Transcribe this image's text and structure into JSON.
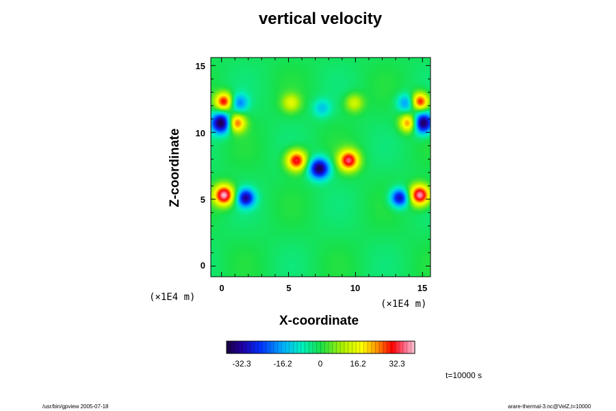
{
  "chart_data": {
    "type": "heatmap",
    "title": "vertical velocity",
    "xlabel": "X-coordinate",
    "ylabel": "Z-coordinate",
    "x_unit": "(×1E4 m)",
    "x_unit_secondary": "(×1E4 m)",
    "xlim": [
      -0.8,
      15.6
    ],
    "ylim": [
      -0.8,
      15.6
    ],
    "x_ticks": [
      "0",
      "5",
      "10",
      "15"
    ],
    "y_ticks": [
      "0",
      "5",
      "10",
      "15"
    ],
    "colorbar": {
      "range": [
        -48,
        48
      ],
      "tick_labels": [
        "-32.3",
        "-16.2",
        "0",
        "16.2",
        "32.3"
      ],
      "tick_values": [
        -32.3,
        -16.2,
        0,
        16.2,
        32.3
      ],
      "colormap": "rainbow (blue-cyan-green-yellow-red-white)"
    },
    "features": [
      {
        "x": 7.3,
        "z": 7.3,
        "value": -45
      },
      {
        "x": 1.8,
        "z": 5.1,
        "value": -38
      },
      {
        "x": 13.3,
        "z": 5.1,
        "value": -38
      },
      {
        "x": 0.0,
        "z": 10.7,
        "value": -48
      },
      {
        "x": 15.0,
        "z": 10.7,
        "value": -48
      },
      {
        "x": 1.3,
        "z": 12.2,
        "value": -22
      },
      {
        "x": 13.8,
        "z": 12.2,
        "value": -22
      },
      {
        "x": 0.2,
        "z": 5.3,
        "value": 48
      },
      {
        "x": 14.8,
        "z": 5.3,
        "value": 48
      },
      {
        "x": 5.6,
        "z": 7.9,
        "value": 42
      },
      {
        "x": 9.5,
        "z": 7.9,
        "value": 42
      },
      {
        "x": 0.2,
        "z": 12.3,
        "value": 40
      },
      {
        "x": 14.8,
        "z": 12.3,
        "value": 40
      },
      {
        "x": 1.1,
        "z": 10.7,
        "value": 36
      },
      {
        "x": 14.0,
        "z": 10.7,
        "value": 36
      },
      {
        "x": 5.2,
        "z": 12.2,
        "value": 18
      },
      {
        "x": 9.9,
        "z": 12.2,
        "value": 18
      },
      {
        "x": 7.5,
        "z": 11.8,
        "value": -14
      }
    ]
  },
  "annotations": {
    "time": "t=10000 s",
    "program": "/usr/bin/gpview 2005-07-18",
    "source": "arare-thermal-3.nc@VelZ,t=10000"
  }
}
